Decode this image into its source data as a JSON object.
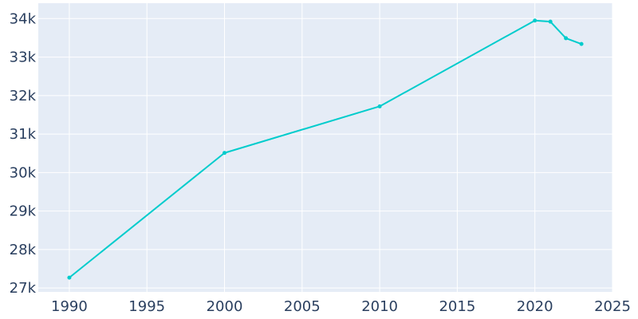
{
  "chart_data": {
    "type": "line",
    "title": "",
    "xlabel": "",
    "ylabel": "",
    "x": [
      1990,
      2000,
      2010,
      2020,
      2021,
      2022,
      2023
    ],
    "series": [
      {
        "values": [
          27270,
          30510,
          31720,
          33950,
          33920,
          33490,
          33340
        ]
      }
    ],
    "xlim": [
      1988,
      2025
    ],
    "ylim": [
      26900,
      34400
    ],
    "x_ticks": [
      {
        "value": 1990,
        "label": "1990"
      },
      {
        "value": 1995,
        "label": "1995"
      },
      {
        "value": 2000,
        "label": "2000"
      },
      {
        "value": 2005,
        "label": "2005"
      },
      {
        "value": 2010,
        "label": "2010"
      },
      {
        "value": 2015,
        "label": "2015"
      },
      {
        "value": 2020,
        "label": "2020"
      },
      {
        "value": 2025,
        "label": "2025"
      }
    ],
    "y_ticks": [
      {
        "value": 27000,
        "label": "27k"
      },
      {
        "value": 28000,
        "label": "28k"
      },
      {
        "value": 29000,
        "label": "29k"
      },
      {
        "value": 30000,
        "label": "30k"
      },
      {
        "value": 31000,
        "label": "31k"
      },
      {
        "value": 32000,
        "label": "32k"
      },
      {
        "value": 33000,
        "label": "33k"
      },
      {
        "value": 34000,
        "label": "34k"
      }
    ],
    "grid": true,
    "legend": "none",
    "colors": {
      "line": "#00cccc",
      "plot_bg": "#e5ecf6",
      "grid": "#ffffff",
      "tick_text": "#2a3f5f"
    }
  }
}
